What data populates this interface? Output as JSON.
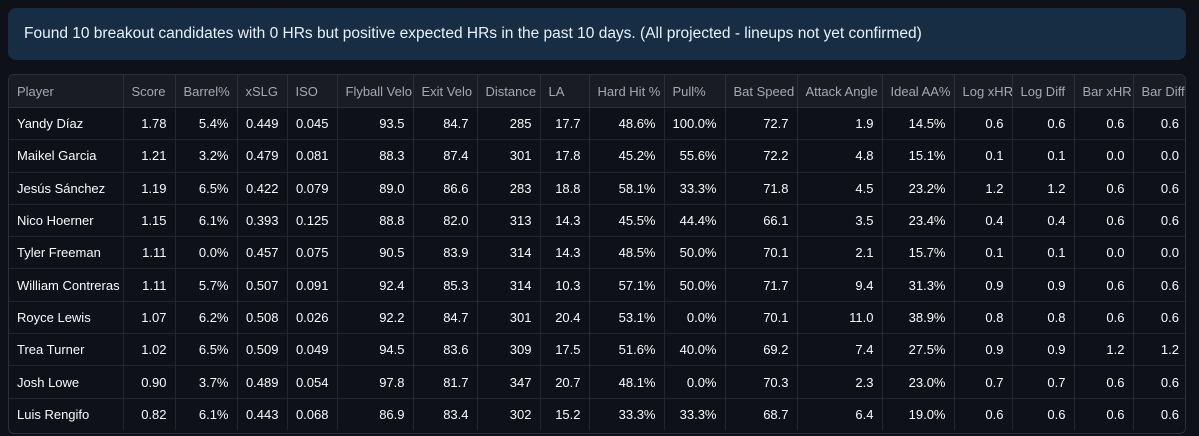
{
  "banner": {
    "message": "Found 10 breakout candidates with 0 HRs but positive expected HRs in the past 10 days. (All projected - lineups not yet confirmed)"
  },
  "table": {
    "columns": [
      "Player",
      "Score",
      "Barrel%",
      "xSLG",
      "ISO",
      "Flyball Velo",
      "Exit Velo",
      "Distance",
      "LA",
      "Hard Hit %",
      "Pull%",
      "Bat Speed",
      "Attack Angle",
      "Ideal AA%",
      "Log xHR",
      "Log Diff",
      "Bar xHR",
      "Bar Diff"
    ],
    "rows": [
      [
        "Yandy Díaz",
        "1.78",
        "5.4%",
        "0.449",
        "0.045",
        "93.5",
        "84.7",
        "285",
        "17.7",
        "48.6%",
        "100.0%",
        "72.7",
        "1.9",
        "14.5%",
        "0.6",
        "0.6",
        "0.6",
        "0.6"
      ],
      [
        "Maikel Garcia",
        "1.21",
        "3.2%",
        "0.479",
        "0.081",
        "88.3",
        "87.4",
        "301",
        "17.8",
        "45.2%",
        "55.6%",
        "72.2",
        "4.8",
        "15.1%",
        "0.1",
        "0.1",
        "0.0",
        "0.0"
      ],
      [
        "Jesús Sánchez",
        "1.19",
        "6.5%",
        "0.422",
        "0.079",
        "89.0",
        "86.6",
        "283",
        "18.8",
        "58.1%",
        "33.3%",
        "71.8",
        "4.5",
        "23.2%",
        "1.2",
        "1.2",
        "0.6",
        "0.6"
      ],
      [
        "Nico Hoerner",
        "1.15",
        "6.1%",
        "0.393",
        "0.125",
        "88.8",
        "82.0",
        "313",
        "14.3",
        "45.5%",
        "44.4%",
        "66.1",
        "3.5",
        "23.4%",
        "0.4",
        "0.4",
        "0.6",
        "0.6"
      ],
      [
        "Tyler Freeman",
        "1.11",
        "0.0%",
        "0.457",
        "0.075",
        "90.5",
        "83.9",
        "314",
        "14.3",
        "48.5%",
        "50.0%",
        "70.1",
        "2.1",
        "15.7%",
        "0.1",
        "0.1",
        "0.0",
        "0.0"
      ],
      [
        "William Contreras",
        "1.11",
        "5.7%",
        "0.507",
        "0.091",
        "92.4",
        "85.3",
        "314",
        "10.3",
        "57.1%",
        "50.0%",
        "71.7",
        "9.4",
        "31.3%",
        "0.9",
        "0.9",
        "0.6",
        "0.6"
      ],
      [
        "Royce Lewis",
        "1.07",
        "6.2%",
        "0.508",
        "0.026",
        "92.2",
        "84.7",
        "301",
        "20.4",
        "53.1%",
        "0.0%",
        "70.1",
        "11.0",
        "38.9%",
        "0.8",
        "0.8",
        "0.6",
        "0.6"
      ],
      [
        "Trea Turner",
        "1.02",
        "6.5%",
        "0.509",
        "0.049",
        "94.5",
        "83.6",
        "309",
        "17.5",
        "51.6%",
        "40.0%",
        "69.2",
        "7.4",
        "27.5%",
        "0.9",
        "0.9",
        "1.2",
        "1.2"
      ],
      [
        "Josh Lowe",
        "0.90",
        "3.7%",
        "0.489",
        "0.054",
        "97.8",
        "81.7",
        "347",
        "20.7",
        "48.1%",
        "0.0%",
        "70.3",
        "2.3",
        "23.0%",
        "0.7",
        "0.7",
        "0.6",
        "0.6"
      ],
      [
        "Luis Rengifo",
        "0.82",
        "6.1%",
        "0.443",
        "0.068",
        "86.9",
        "83.4",
        "302",
        "15.2",
        "33.3%",
        "33.3%",
        "68.7",
        "6.4",
        "19.0%",
        "0.6",
        "0.6",
        "0.6",
        "0.6"
      ]
    ]
  },
  "colors": {
    "page_background": "#0e1117",
    "banner_background": "#172d43",
    "header_background": "#1a1c24",
    "text": "#fafafa"
  }
}
